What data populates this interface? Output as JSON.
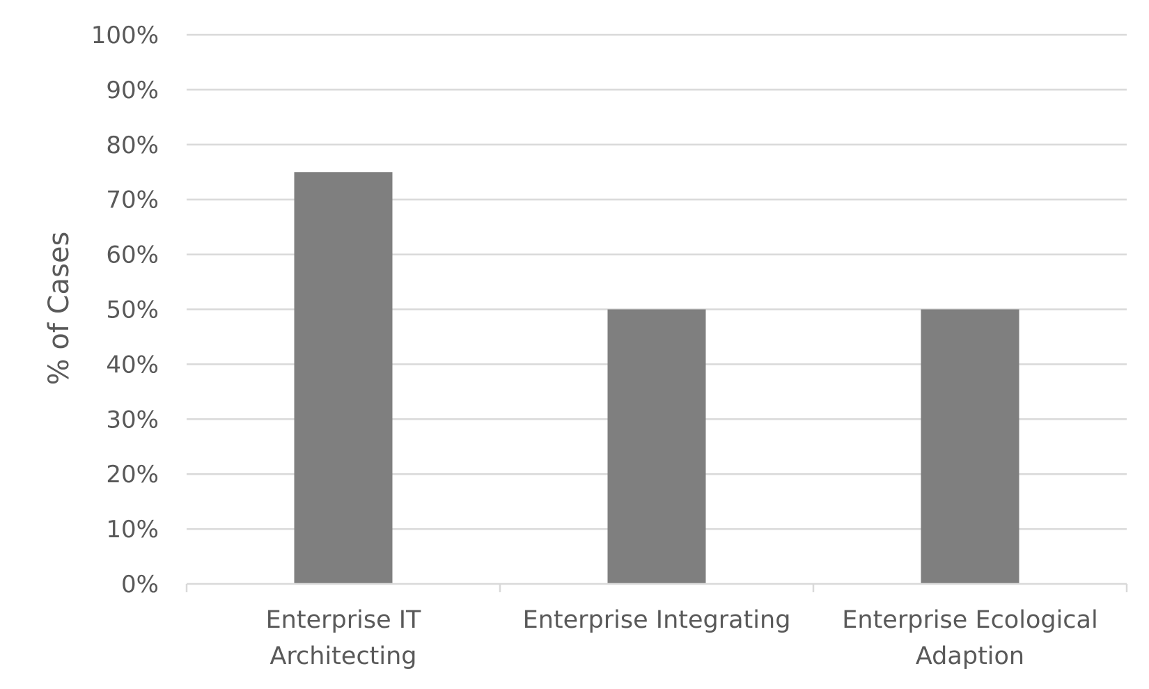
{
  "chart_data": {
    "type": "bar",
    "categories": [
      [
        "Enterprise IT",
        "Architecting"
      ],
      [
        "Enterprise Integrating"
      ],
      [
        "Enterprise Ecological",
        "Adaption"
      ]
    ],
    "values": [
      75,
      50,
      50
    ],
    "title": "",
    "xlabel": "",
    "ylabel": "% of Cases",
    "ylim": [
      0,
      100
    ],
    "yticks": [
      0,
      10,
      20,
      30,
      40,
      50,
      60,
      70,
      80,
      90,
      100
    ],
    "ytick_labels": [
      "0%",
      "10%",
      "20%",
      "30%",
      "40%",
      "50%",
      "60%",
      "70%",
      "80%",
      "90%",
      "100%"
    ],
    "grid": true,
    "legend": "none",
    "colors": {
      "bar": "#7f7f7f",
      "grid": "#d9d9d9",
      "axis": "#d9d9d9",
      "text": "#595959"
    }
  }
}
